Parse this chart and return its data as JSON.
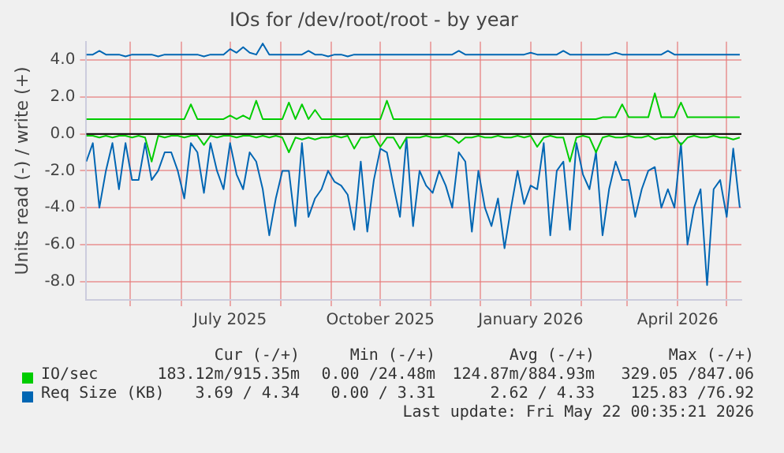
{
  "chart_data": {
    "type": "line",
    "title": "IOs for /dev/root/root - by year",
    "ylabel": "Units read (-) / write (+)",
    "x": [
      "2025-04-04",
      "2025-04-08",
      "2025-04-12",
      "2025-04-16",
      "2025-04-20",
      "2025-04-24",
      "2025-04-28",
      "2025-05-02",
      "2025-05-06",
      "2025-05-10",
      "2025-05-14",
      "2025-05-18",
      "2025-05-22",
      "2025-05-26",
      "2025-05-30",
      "2025-06-03",
      "2025-06-07",
      "2025-06-11",
      "2025-06-15",
      "2025-06-19",
      "2025-06-23",
      "2025-06-27",
      "2025-07-01",
      "2025-07-05",
      "2025-07-09",
      "2025-07-13",
      "2025-07-17",
      "2025-07-21",
      "2025-07-25",
      "2025-07-29",
      "2025-08-02",
      "2025-08-06",
      "2025-08-10",
      "2025-08-14",
      "2025-08-18",
      "2025-08-22",
      "2025-08-26",
      "2025-08-30",
      "2025-09-03",
      "2025-09-07",
      "2025-09-11",
      "2025-09-15",
      "2025-09-19",
      "2025-09-23",
      "2025-09-27",
      "2025-10-01",
      "2025-10-05",
      "2025-10-09",
      "2025-10-13",
      "2025-10-17",
      "2025-10-21",
      "2025-10-25",
      "2025-10-29",
      "2025-11-02",
      "2025-11-06",
      "2025-11-10",
      "2025-11-14",
      "2025-11-18",
      "2025-11-22",
      "2025-11-26",
      "2025-11-30",
      "2025-12-04",
      "2025-12-08",
      "2025-12-12",
      "2025-12-16",
      "2025-12-20",
      "2025-12-24",
      "2025-12-28",
      "2026-01-01",
      "2026-01-05",
      "2026-01-09",
      "2026-01-13",
      "2026-01-17",
      "2026-01-21",
      "2026-01-25",
      "2026-01-29",
      "2026-02-02",
      "2026-02-06",
      "2026-02-10",
      "2026-02-14",
      "2026-02-18",
      "2026-02-22",
      "2026-02-26",
      "2026-03-02",
      "2026-03-06",
      "2026-03-10",
      "2026-03-14",
      "2026-03-18",
      "2026-03-22",
      "2026-03-26",
      "2026-03-30",
      "2026-04-03",
      "2026-04-07",
      "2026-04-11",
      "2026-04-15",
      "2026-04-19",
      "2026-04-23",
      "2026-04-27",
      "2026-05-01",
      "2026-05-05",
      "2026-05-09"
    ],
    "series": [
      {
        "name": "IO/sec",
        "color": "#00cc00",
        "values": [
          0.8,
          0.8,
          0.8,
          0.8,
          0.8,
          0.8,
          0.8,
          0.8,
          0.8,
          0.8,
          0.8,
          0.8,
          0.8,
          0.8,
          0.8,
          0.8,
          1.6,
          0.8,
          0.8,
          0.8,
          0.8,
          0.8,
          1.0,
          0.8,
          1.0,
          0.8,
          1.8,
          0.8,
          0.8,
          0.8,
          0.8,
          1.7,
          0.8,
          1.6,
          0.8,
          1.3,
          0.8,
          0.8,
          0.8,
          0.8,
          0.8,
          0.8,
          0.8,
          0.8,
          0.8,
          0.8,
          1.8,
          0.8,
          0.8,
          0.8,
          0.8,
          0.8,
          0.8,
          0.8,
          0.8,
          0.8,
          0.8,
          0.8,
          0.8,
          0.8,
          0.8,
          0.8,
          0.8,
          0.8,
          0.8,
          0.8,
          0.8,
          0.8,
          0.8,
          0.8,
          0.8,
          0.8,
          0.8,
          0.8,
          0.8,
          0.8,
          0.8,
          0.8,
          0.8,
          0.9,
          0.9,
          0.9,
          1.6,
          0.9,
          0.9,
          0.9,
          0.9,
          2.2,
          0.9,
          0.9,
          0.9,
          1.7,
          0.9,
          0.9,
          0.9,
          0.9,
          0.9,
          0.9,
          0.9,
          0.9,
          0.9
        ]
      },
      {
        "color": "#00cc00",
        "values": [
          -0.1,
          -0.1,
          -0.2,
          -0.1,
          -0.2,
          -0.1,
          -0.1,
          -0.2,
          -0.1,
          -0.2,
          -1.5,
          -0.1,
          -0.2,
          -0.1,
          -0.1,
          -0.2,
          -0.1,
          -0.1,
          -0.6,
          -0.1,
          -0.2,
          -0.1,
          -0.1,
          -0.2,
          -0.1,
          -0.1,
          -0.2,
          -0.1,
          -0.2,
          -0.1,
          -0.2,
          -1.0,
          -0.2,
          -0.3,
          -0.2,
          -0.3,
          -0.2,
          -0.2,
          -0.1,
          -0.2,
          -0.1,
          -0.8,
          -0.2,
          -0.2,
          -0.1,
          -0.7,
          -0.2,
          -0.2,
          -0.8,
          -0.2,
          -0.2,
          -0.2,
          -0.1,
          -0.2,
          -0.2,
          -0.1,
          -0.2,
          -0.5,
          -0.2,
          -0.2,
          -0.1,
          -0.2,
          -0.2,
          -0.1,
          -0.2,
          -0.2,
          -0.1,
          -0.2,
          -0.1,
          -0.7,
          -0.2,
          -0.1,
          -0.2,
          -0.2,
          -1.5,
          -0.2,
          -0.1,
          -0.2,
          -1.0,
          -0.2,
          -0.1,
          -0.2,
          -0.2,
          -0.1,
          -0.2,
          -0.2,
          -0.1,
          -0.3,
          -0.2,
          -0.2,
          -0.1,
          -0.6,
          -0.2,
          -0.1,
          -0.2,
          -0.2,
          -0.1,
          -0.2,
          -0.2,
          -0.3,
          -0.2
        ]
      },
      {
        "name": "Req Size (KB)",
        "color": "#0066b3",
        "values": [
          4.3,
          4.3,
          4.5,
          4.3,
          4.3,
          4.3,
          4.2,
          4.3,
          4.3,
          4.3,
          4.3,
          4.2,
          4.3,
          4.3,
          4.3,
          4.3,
          4.3,
          4.3,
          4.2,
          4.3,
          4.3,
          4.3,
          4.6,
          4.4,
          4.7,
          4.4,
          4.3,
          4.9,
          4.3,
          4.3,
          4.3,
          4.3,
          4.3,
          4.3,
          4.5,
          4.3,
          4.3,
          4.2,
          4.3,
          4.3,
          4.2,
          4.3,
          4.3,
          4.3,
          4.3,
          4.3,
          4.3,
          4.3,
          4.3,
          4.3,
          4.3,
          4.3,
          4.3,
          4.3,
          4.3,
          4.3,
          4.3,
          4.5,
          4.3,
          4.3,
          4.3,
          4.3,
          4.3,
          4.3,
          4.3,
          4.3,
          4.3,
          4.3,
          4.4,
          4.3,
          4.3,
          4.3,
          4.3,
          4.5,
          4.3,
          4.3,
          4.3,
          4.3,
          4.3,
          4.3,
          4.3,
          4.4,
          4.3,
          4.3,
          4.3,
          4.3,
          4.3,
          4.3,
          4.3,
          4.5,
          4.3,
          4.3,
          4.3,
          4.3,
          4.3,
          4.3,
          4.3,
          4.3,
          4.3,
          4.3,
          4.3
        ]
      },
      {
        "color": "#0066b3",
        "values": [
          -1.5,
          -0.5,
          -4.0,
          -2.0,
          -0.5,
          -3.0,
          -0.5,
          -2.5,
          -2.5,
          -0.5,
          -2.5,
          -2.0,
          -1.0,
          -1.0,
          -2.0,
          -3.5,
          -0.5,
          -1.0,
          -3.2,
          -0.5,
          -2.0,
          -3.0,
          -0.5,
          -2.2,
          -3.0,
          -1.0,
          -1.5,
          -3.0,
          -5.5,
          -3.5,
          -2.0,
          -2.0,
          -5.0,
          -0.5,
          -4.5,
          -3.5,
          -3.0,
          -2.0,
          -2.6,
          -2.8,
          -3.3,
          -5.2,
          -1.5,
          -5.3,
          -2.5,
          -0.8,
          -1.0,
          -2.8,
          -4.5,
          -0.2,
          -5.0,
          -2.0,
          -2.8,
          -3.2,
          -2.0,
          -2.8,
          -4.0,
          -1.0,
          -1.5,
          -5.3,
          -2.0,
          -4.0,
          -5.0,
          -3.5,
          -6.2,
          -4.0,
          -2.0,
          -3.8,
          -2.8,
          -3.0,
          -0.5,
          -5.5,
          -2.0,
          -1.5,
          -5.2,
          -0.5,
          -2.2,
          -3.0,
          -1.0,
          -5.5,
          -3.0,
          -1.5,
          -2.5,
          -2.5,
          -4.5,
          -3.0,
          -2.0,
          -1.8,
          -4.0,
          -3.0,
          -4.0,
          -0.5,
          -6.0,
          -4.0,
          -3.0,
          -8.2,
          -3.0,
          -2.5,
          -4.5,
          -0.8,
          -4.0
        ]
      }
    ],
    "xlim": [
      "2025-04-04",
      "2026-05-10"
    ],
    "xticks": [
      {
        "value": "2025-05-01",
        "label": null
      },
      {
        "value": "2025-06-01",
        "label": null
      },
      {
        "value": "2025-07-01",
        "label": "July 2025"
      },
      {
        "value": "2025-08-01",
        "label": null
      },
      {
        "value": "2025-09-01",
        "label": null
      },
      {
        "value": "2025-10-01",
        "label": "October 2025"
      },
      {
        "value": "2025-11-01",
        "label": null
      },
      {
        "value": "2025-12-01",
        "label": null
      },
      {
        "value": "2026-01-01",
        "label": "January 2026"
      },
      {
        "value": "2026-02-01",
        "label": null
      },
      {
        "value": "2026-03-01",
        "label": null
      },
      {
        "value": "2026-04-01",
        "label": "April 2026"
      },
      {
        "value": "2026-05-01",
        "label": null
      }
    ],
    "ylim": [
      -9,
      5
    ],
    "yticks": [
      {
        "value": -8,
        "label": "-8.0"
      },
      {
        "value": -6,
        "label": "-6.0"
      },
      {
        "value": -4,
        "label": "-4.0"
      },
      {
        "value": -2,
        "label": "-2.0"
      },
      {
        "value": 0,
        "label": "0.0"
      },
      {
        "value": 2,
        "label": "2.0"
      },
      {
        "value": 4,
        "label": "4.0"
      }
    ],
    "ref_lines": [
      {
        "axis": "y",
        "value": 0,
        "color": "#000000"
      }
    ],
    "grid": true,
    "legend": "bottom",
    "marker": "none",
    "line_style": "solid",
    "annotations": [
      "Cur (-/+)",
      "Min (-/+)",
      "Avg (-/+)",
      "Max (-/+)",
      "183.12m/915.35m",
      "0.00 /24.48m",
      "124.87m/884.93m",
      "329.05 /847.06",
      "3.69 / 4.34",
      "0.00 / 3.31",
      "2.62 / 4.33",
      "125.83 /76.92",
      "Last update: Fri May 22 00:35:21 2026"
    ]
  }
}
